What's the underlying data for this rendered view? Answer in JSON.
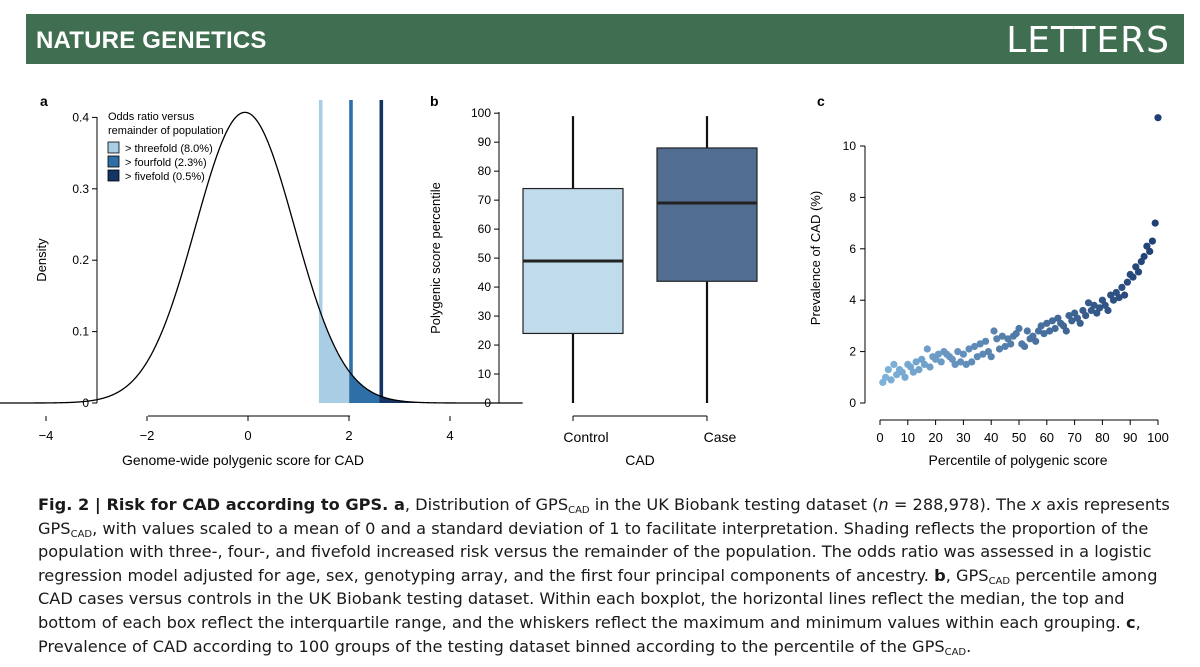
{
  "header": {
    "journal": "NATURE GENETICS",
    "section": "LETTERS",
    "bg_color": "#3f6e51"
  },
  "panels": {
    "a": {
      "label": "a",
      "legend_title_1": "Odds ratio versus",
      "legend_title_2": "remainder of population",
      "legend": [
        {
          "label": "> threefold (8.0%)",
          "color": "#a9cde4"
        },
        {
          "label": "> fourfold (2.3%)",
          "color": "#2e6fa8"
        },
        {
          "label": "> fivefold (0.5%)",
          "color": "#143463"
        }
      ],
      "ylabel": "Density",
      "xlabel": "Genome-wide polygenic score for CAD",
      "yticks": [
        "0",
        "0.1 -",
        "0.2 -",
        "0.3 -",
        "0.4 -"
      ],
      "xticks": [
        "−4",
        "−2",
        "0",
        "2",
        "4"
      ]
    },
    "b": {
      "label": "b",
      "ylabel": "Polygenic score percentile",
      "xlabel": "CAD",
      "yticks": [
        "0",
        "10",
        "20",
        "30",
        "40",
        "50",
        "60",
        "70",
        "80",
        "90",
        "100"
      ],
      "categories": [
        "Control",
        "Case"
      ]
    },
    "c": {
      "label": "c",
      "ylabel": "Prevalence of CAD (%)",
      "xlabel": "Percentile of polygenic score",
      "yticks": [
        "0",
        "2",
        "4",
        "6",
        "8",
        "10"
      ],
      "xticks": [
        "0",
        "10",
        "20",
        "30",
        "40",
        "50",
        "60",
        "70",
        "80",
        "90",
        "100"
      ]
    }
  },
  "chart_data": [
    {
      "type": "area",
      "panel": "a",
      "xlabel": "Genome-wide polygenic score for CAD",
      "ylabel": "Density",
      "xlim": [
        -5.3,
        5.4
      ],
      "ylim": [
        0,
        0.42
      ],
      "density": {
        "mean": -0.1,
        "sd": 0.98
      },
      "thresholds": [
        {
          "name": "> threefold (8.0%)",
          "x": 1.4,
          "color": "#a9cde4"
        },
        {
          "name": "> fourfold (2.3%)",
          "x": 2.0,
          "color": "#2e6fa8"
        },
        {
          "name": "> fivefold (0.5%)",
          "x": 2.6,
          "color": "#143463"
        }
      ],
      "legend_position": "top-left",
      "grid": false
    },
    {
      "type": "box",
      "panel": "b",
      "xlabel": "CAD",
      "ylabel": "Polygenic score percentile",
      "ylim": [
        0,
        100
      ],
      "categories": [
        "Control",
        "Case"
      ],
      "boxes": [
        {
          "category": "Control",
          "min": 0,
          "q1": 24,
          "median": 49,
          "q3": 74,
          "max": 99,
          "color": "#c0dcec"
        },
        {
          "category": "Case",
          "min": 0,
          "q1": 42,
          "median": 69,
          "q3": 88,
          "max": 99,
          "color": "#516e91"
        }
      ],
      "grid": false
    },
    {
      "type": "scatter",
      "panel": "c",
      "xlabel": "Percentile of polygenic score",
      "ylabel": "Prevalence of CAD (%)",
      "xlim": [
        0,
        100
      ],
      "ylim": [
        0,
        11
      ],
      "x": [
        1,
        2,
        3,
        4,
        5,
        6,
        7,
        8,
        9,
        10,
        11,
        12,
        13,
        14,
        15,
        16,
        17,
        18,
        19,
        20,
        21,
        22,
        23,
        24,
        25,
        26,
        27,
        28,
        29,
        30,
        31,
        32,
        33,
        34,
        35,
        36,
        37,
        38,
        39,
        40,
        41,
        42,
        43,
        44,
        45,
        46,
        47,
        48,
        49,
        50,
        51,
        52,
        53,
        54,
        55,
        56,
        57,
        58,
        59,
        60,
        61,
        62,
        63,
        64,
        65,
        66,
        67,
        68,
        69,
        70,
        71,
        72,
        73,
        74,
        75,
        76,
        77,
        78,
        79,
        80,
        81,
        82,
        83,
        84,
        85,
        86,
        87,
        88,
        89,
        90,
        91,
        92,
        93,
        94,
        95,
        96,
        97,
        98,
        99,
        100
      ],
      "y": [
        0.8,
        1.0,
        1.3,
        0.9,
        1.5,
        1.1,
        1.3,
        1.2,
        1.0,
        1.5,
        1.4,
        1.2,
        1.6,
        1.3,
        1.7,
        1.5,
        2.1,
        1.4,
        1.8,
        1.7,
        1.9,
        1.6,
        2.0,
        1.9,
        1.8,
        1.7,
        1.5,
        2.0,
        1.6,
        1.9,
        1.5,
        2.1,
        1.6,
        2.2,
        1.8,
        2.3,
        1.9,
        2.4,
        2.0,
        1.8,
        2.8,
        2.5,
        2.1,
        2.6,
        2.2,
        2.5,
        2.3,
        2.6,
        2.7,
        2.9,
        2.3,
        2.2,
        2.8,
        2.5,
        2.6,
        2.4,
        2.8,
        3.0,
        2.7,
        3.1,
        2.8,
        3.2,
        2.9,
        3.3,
        3.1,
        3.0,
        2.8,
        3.4,
        3.2,
        3.5,
        3.3,
        3.1,
        3.6,
        3.4,
        3.9,
        3.6,
        3.8,
        3.5,
        3.7,
        4.0,
        3.8,
        3.6,
        4.2,
        4.0,
        4.3,
        4.1,
        4.5,
        4.2,
        4.7,
        5.0,
        4.9,
        5.3,
        5.1,
        5.5,
        5.7,
        6.1,
        5.9,
        6.3,
        7.0,
        11.1
      ],
      "color_scale": [
        "#7fb2d9",
        "#1f3f72"
      ],
      "grid": false
    }
  ],
  "caption": {
    "fig": "Fig. 2 | ",
    "title": "Risk for CAD according to GPS. ",
    "a_label": "a",
    "p1": ", Distribution of GPS",
    "sub": "CAD",
    "p2": " in the UK Biobank testing dataset (",
    "n_italic": "n",
    "p3": " = 288,978). The ",
    "x_italic": "x",
    "p4": " axis represents GPS",
    "p5": ", with values scaled to a mean of 0 and a standard deviation of 1 to facilitate interpretation. Shading reflects the proportion of the population with three-, four-, and fivefold increased risk versus the remainder of the population. The odds ratio was assessed in a logistic regression model adjusted for age, sex, genotyping array, and the first four principal components of ancestry. ",
    "b_label": "b",
    "p6": ", GPS",
    "p7": " percentile among CAD cases versus controls in the UK Biobank testing dataset. Within each boxplot, the horizontal lines reflect the median, the top and bottom of each box reflect the interquartile range, and the whiskers reflect the maximum and minimum values within each grouping. ",
    "c_label": "c",
    "p8": ", Prevalence of CAD according to 100 groups of the testing dataset binned according to the percentile of the GPS",
    "p9": "."
  }
}
